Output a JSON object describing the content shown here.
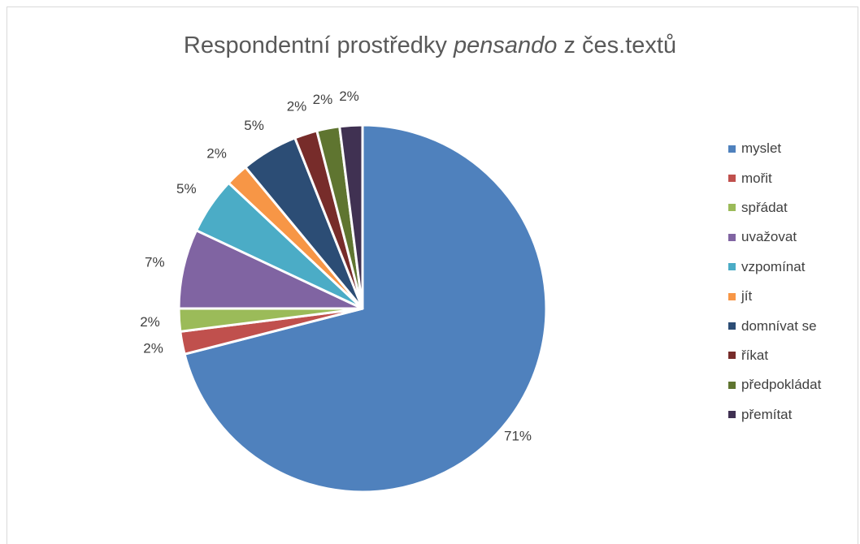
{
  "chart_data": {
    "type": "pie",
    "title_parts": [
      "Respondentní prostředky ",
      "pensando",
      " z čes.textů"
    ],
    "slices": [
      {
        "name": "myslet",
        "value": 71,
        "label": "71%",
        "color": "#4f81bd"
      },
      {
        "name": "mořit",
        "value": 2,
        "label": "2%",
        "color": "#c0504d"
      },
      {
        "name": "spřádat",
        "value": 2,
        "label": "2%",
        "color": "#9bbb59"
      },
      {
        "name": "uvažovat",
        "value": 7,
        "label": "7%",
        "color": "#8064a2"
      },
      {
        "name": "vzpomínat",
        "value": 5,
        "label": "5%",
        "color": "#4bacc6"
      },
      {
        "name": "jít",
        "value": 2,
        "label": "2%",
        "color": "#f79646"
      },
      {
        "name": "domnívat se",
        "value": 5,
        "label": "5%",
        "color": "#2c4d75"
      },
      {
        "name": "říkat",
        "value": 2,
        "label": "2%",
        "color": "#772c2a"
      },
      {
        "name": "předpokládat",
        "value": 2,
        "label": "2%",
        "color": "#5f7530"
      },
      {
        "name": "přemítat",
        "value": 2,
        "label": "2%",
        "color": "#403152"
      }
    ],
    "legend_position": "right"
  }
}
